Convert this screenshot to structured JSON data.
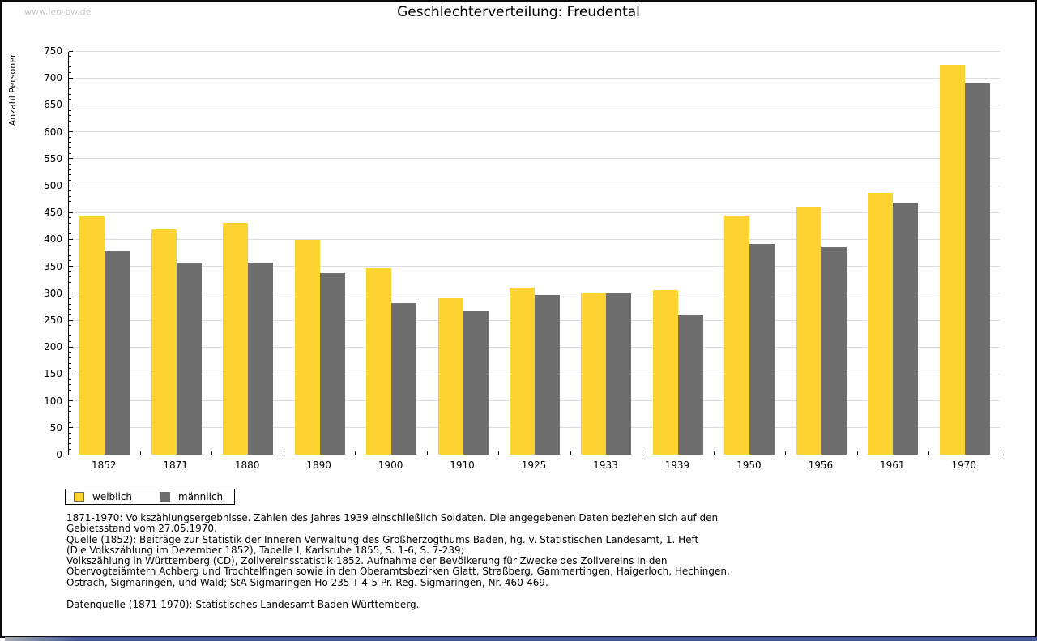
{
  "header": {
    "watermark": "www.leo-bw.de"
  },
  "chart_data": {
    "type": "bar",
    "title": "Geschlechterverteilung: Freudental",
    "ylabel": "Anzahl Personen",
    "xlabel": "",
    "ylim": [
      0,
      750
    ],
    "ytick_step": 50,
    "yminor_tick_step": 10,
    "grid": true,
    "legend_position": "bottom-left",
    "categories": [
      "1852",
      "1871",
      "1880",
      "1890",
      "1900",
      "1910",
      "1925",
      "1933",
      "1939",
      "1950",
      "1956",
      "1961",
      "1970"
    ],
    "series": [
      {
        "name": "weiblich",
        "color": "#FDD331",
        "values": [
          443,
          418,
          430,
          399,
          347,
          290,
          310,
          300,
          306,
          445,
          460,
          487,
          725
        ]
      },
      {
        "name": "männlich",
        "color": "#6E6E6E",
        "values": [
          378,
          356,
          357,
          338,
          282,
          267,
          297,
          299,
          259,
          391,
          385,
          469,
          690
        ]
      }
    ]
  },
  "footer": {
    "note_lines": [
      "1871-1970: Volkszählungsergebnisse. Zahlen des Jahres 1939 einschließlich Soldaten. Die angegebenen Daten beziehen sich auf den",
      "Gebietsstand vom 27.05.1970.",
      "Quelle (1852): Beiträge zur Statistik der Inneren Verwaltung des Großherzogthums Baden, hg. v. Statistischen Landesamt, 1. Heft",
      "(Die Volkszählung im Dezember 1852), Tabelle I, Karlsruhe 1855, S. 1-6, S. 7-239;",
      "Volkszählung in Württemberg (CD), Zollvereinsstatistik 1852. Aufnahme der Bevölkerung für Zwecke des Zollvereins in den",
      "Obervogteiämtern Achberg und Trochtelfingen sowie in den Oberamtsbezirken Glatt, Straßberg, Gammertingen, Haigerloch, Hechingen,",
      "Ostrach, Sigmaringen, und Wald; StA Sigmaringen Ho 235 T 4-5 Pr. Reg. Sigmaringen, Nr. 460-469."
    ],
    "datasource": "Datenquelle (1871-1970): Statistisches Landesamt Baden-Württemberg."
  },
  "colors": {
    "grid": "#dcdcdc",
    "axis": "#000000",
    "watermark": "#c6c6c6",
    "bottom_bar": "#46579d"
  }
}
